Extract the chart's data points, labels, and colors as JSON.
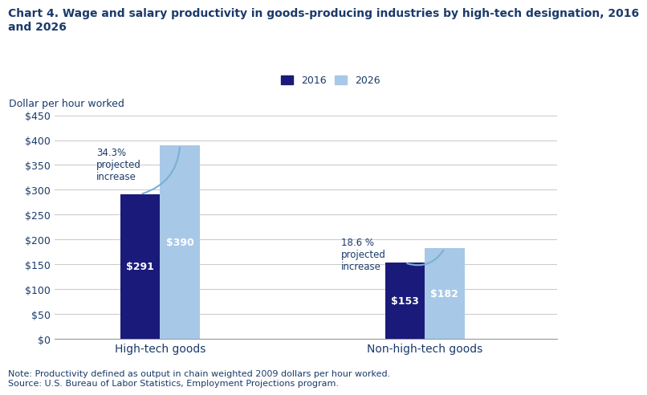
{
  "title_line1": "Chart 4. Wage and salary productivity in goods-producing industries by high-tech designation, 2016",
  "title_line2": "and 2026",
  "ylabel": "Dollar per hour worked",
  "note": "Note: Productivity defined as output in chain weighted 2009 dollars per hour worked.\nSource: U.S. Bureau of Labor Statistics, Employment Projections program.",
  "categories": [
    "High-tech goods",
    "Non-high-tech goods"
  ],
  "values_2016": [
    291,
    153
  ],
  "values_2026": [
    390,
    182
  ],
  "labels_2016": [
    "$291",
    "$153"
  ],
  "labels_2026": [
    "$390",
    "$182"
  ],
  "pct_increase_0": "34.3%\nprojected\nincrease",
  "pct_increase_1": "18.6 %\nprojected\nincrease",
  "color_2016": "#1a1a7a",
  "color_2026": "#a8c8e8",
  "ylim": [
    0,
    450
  ],
  "yticks": [
    0,
    50,
    100,
    150,
    200,
    250,
    300,
    350,
    400,
    450
  ],
  "ytick_labels": [
    "$0",
    "$50",
    "$100",
    "$150",
    "$200",
    "$250",
    "$300",
    "$350",
    "$400",
    "$450"
  ],
  "legend_2016": "2016",
  "legend_2026": "2026",
  "bar_width": 0.3,
  "group_positions": [
    1.0,
    3.0
  ],
  "xlim": [
    0.2,
    4.0
  ],
  "text_color": "#1a3a6a",
  "annotation_color": "#7ab0d4",
  "grid_color": "#cccccc",
  "title_fontsize": 10,
  "axis_label_fontsize": 9,
  "tick_fontsize": 9,
  "bar_label_fontsize": 9,
  "annot_fontsize": 8.5,
  "legend_fontsize": 9,
  "note_fontsize": 8
}
